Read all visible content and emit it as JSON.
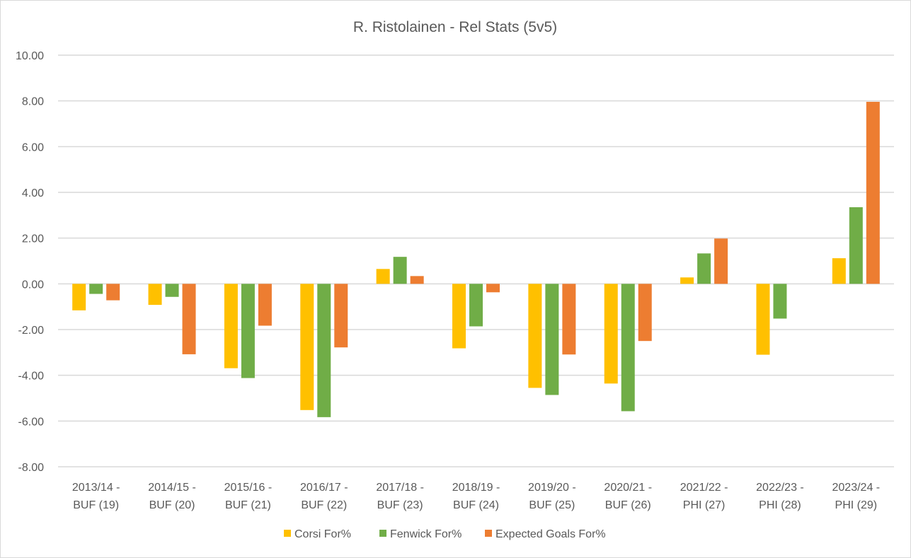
{
  "chart_data": {
    "type": "bar",
    "title": "R. Ristolainen - Rel Stats (5v5)",
    "xlabel": "",
    "ylabel": "",
    "ylim": [
      -8,
      10
    ],
    "y_ticks": [
      "10.00",
      "8.00",
      "6.00",
      "4.00",
      "2.00",
      "0.00",
      "-2.00",
      "-4.00",
      "-6.00",
      "-8.00"
    ],
    "y_tick_values": [
      10,
      8,
      6,
      4,
      2,
      0,
      -2,
      -4,
      -6,
      -8
    ],
    "grid": true,
    "legend_position": "bottom",
    "categories": [
      [
        "2013/14 -",
        "BUF (19)"
      ],
      [
        "2014/15 -",
        "BUF (20)"
      ],
      [
        "2015/16 -",
        "BUF (21)"
      ],
      [
        "2016/17 -",
        "BUF (22)"
      ],
      [
        "2017/18 -",
        "BUF (23)"
      ],
      [
        "2018/19 -",
        "BUF (24)"
      ],
      [
        "2019/20 -",
        "BUF (25)"
      ],
      [
        "2020/21 -",
        "BUF (26)"
      ],
      [
        "2021/22 -",
        "PHI (27)"
      ],
      [
        "2022/23 -",
        "PHI (28)"
      ],
      [
        "2023/24 -",
        "PHI (29)"
      ]
    ],
    "series": [
      {
        "name": "Corsi For%",
        "color": "#FFC000",
        "values": [
          -1.16,
          -0.92,
          -3.69,
          -5.52,
          0.65,
          -2.82,
          -4.55,
          -4.36,
          0.28,
          -3.1,
          1.12
        ]
      },
      {
        "name": "Fenwick For%",
        "color": "#70AD47",
        "values": [
          -0.44,
          -0.57,
          -4.12,
          -5.83,
          1.18,
          -1.86,
          -4.86,
          -5.57,
          1.33,
          -1.52,
          3.35
        ]
      },
      {
        "name": "Expected Goals For%",
        "color": "#ED7D31",
        "values": [
          -0.72,
          -3.08,
          -1.83,
          -2.78,
          0.34,
          -0.37,
          -3.09,
          -2.5,
          1.98,
          0.0,
          7.96
        ]
      }
    ]
  }
}
